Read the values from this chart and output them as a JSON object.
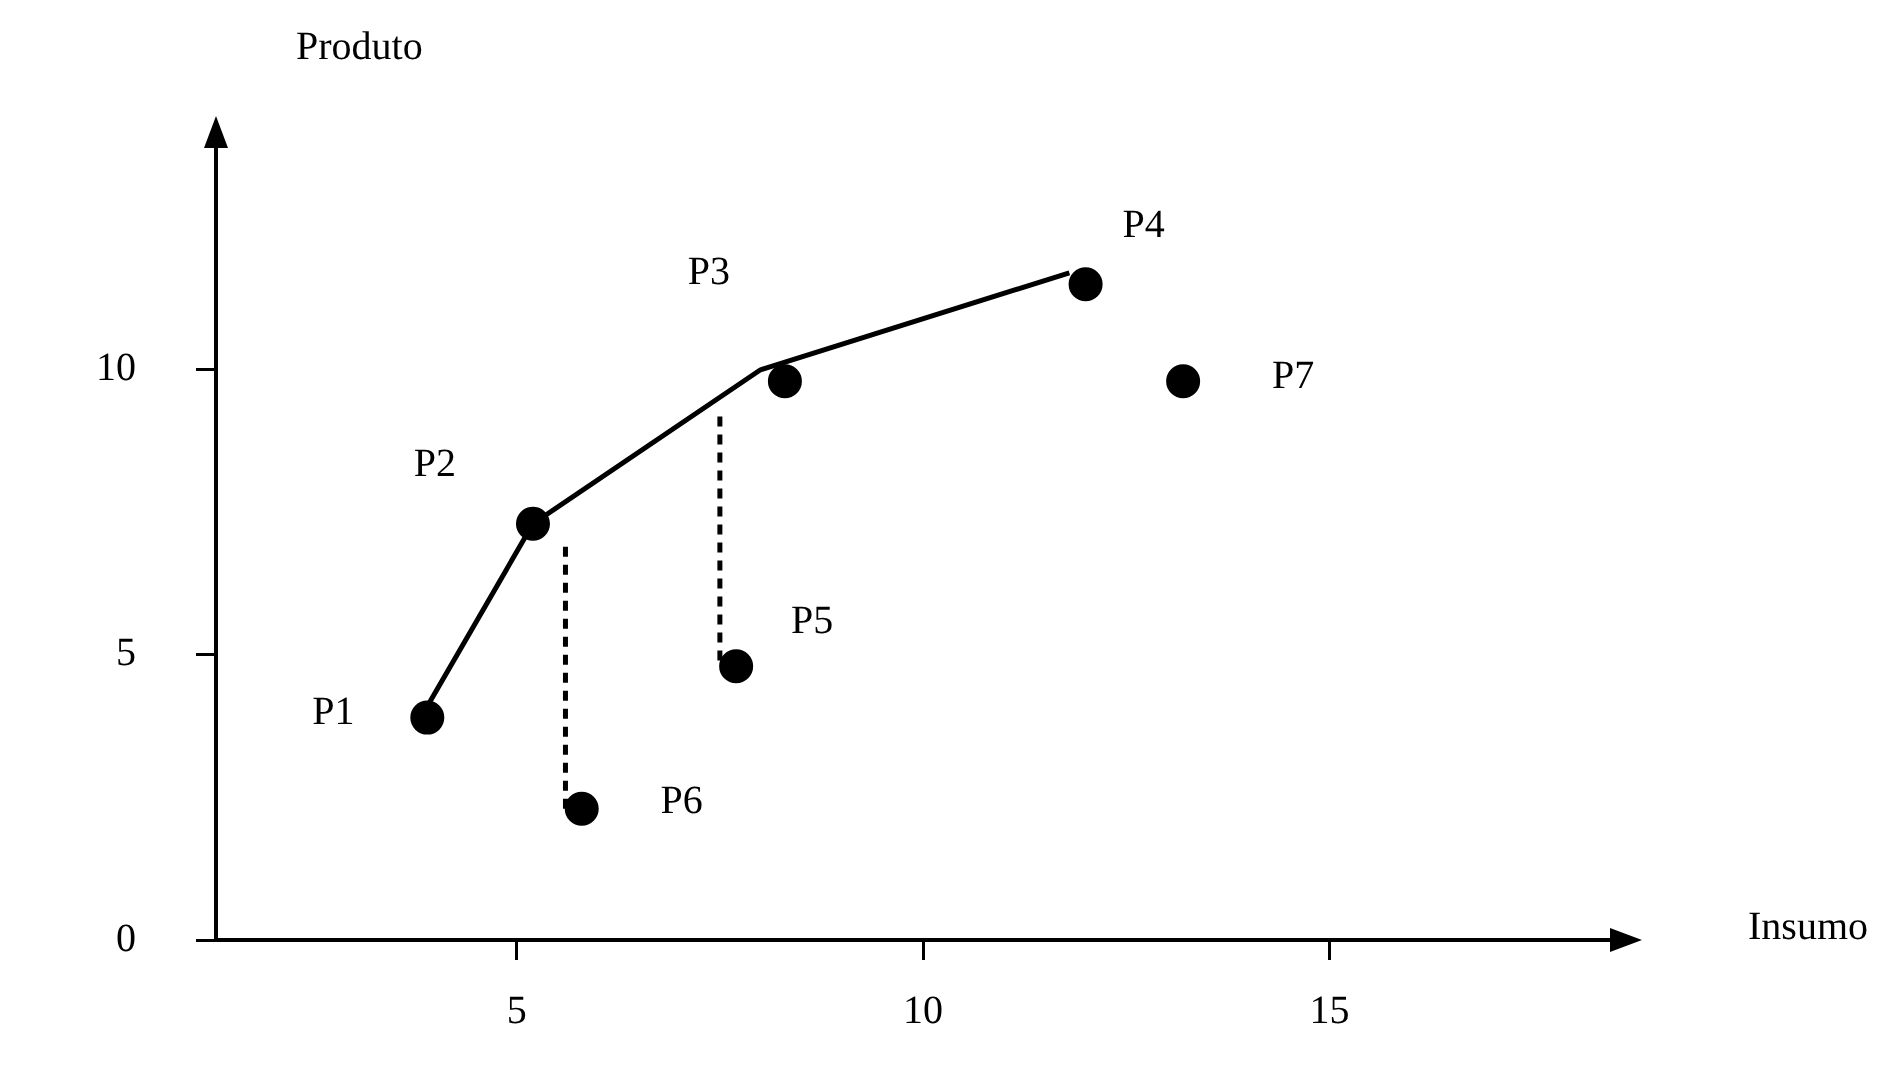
{
  "chart_data": {
    "type": "scatter",
    "xlabel": "Insumo",
    "ylabel": "Produto",
    "xlim": [
      1.3,
      18.6
    ],
    "ylim": [
      0,
      14.1
    ],
    "xticks": [
      5,
      10,
      15
    ],
    "yticks": [
      0,
      5,
      10
    ],
    "grid": false,
    "legend": false,
    "marker": "circle",
    "series": [
      {
        "color": "#000000",
        "x": [
          3.9,
          5.2,
          8.3,
          12.0,
          7.7,
          5.8,
          13.2
        ],
        "values": [
          3.9,
          7.3,
          9.8,
          11.5,
          4.8,
          2.3,
          9.8
        ]
      },
      {
        "type": "line",
        "color": "#000000",
        "line_style": "solid",
        "marker": "none",
        "x": [
          3.9,
          5.2,
          8.0,
          11.8
        ],
        "values": [
          4.1,
          7.3,
          10.0,
          11.7
        ]
      },
      {
        "type": "line",
        "color": "#000000",
        "line_style": "dashed",
        "marker": "none",
        "x": [
          5.6,
          5.6
        ],
        "values": [
          2.3,
          7.0
        ]
      },
      {
        "type": "line",
        "color": "#000000",
        "line_style": "dashed",
        "marker": "none",
        "x": [
          7.5,
          7.5
        ],
        "values": [
          4.9,
          9.2
        ]
      }
    ],
    "annotations": [
      {
        "text": "P1",
        "x": 3.9,
        "y": 3.9
      },
      {
        "text": "P2",
        "x": 5.2,
        "y": 7.3
      },
      {
        "text": "P3",
        "x": 8.3,
        "y": 9.8
      },
      {
        "text": "P4",
        "x": 12.0,
        "y": 11.5
      },
      {
        "text": "P5",
        "x": 7.7,
        "y": 4.8
      },
      {
        "text": "P6",
        "x": 5.8,
        "y": 2.3
      },
      {
        "text": "P7",
        "x": 13.2,
        "y": 9.8
      }
    ]
  }
}
